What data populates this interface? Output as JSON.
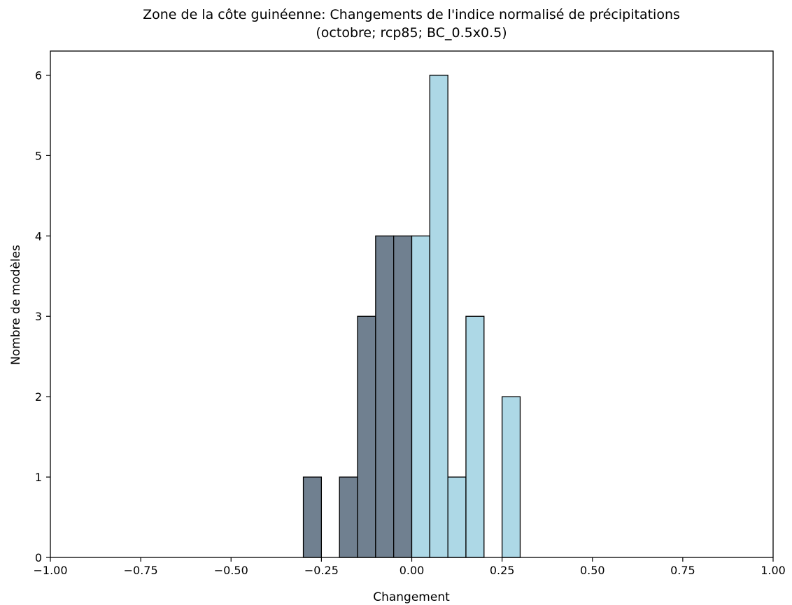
{
  "chart_data": {
    "type": "bar",
    "title": "Zone de la côte guinéenne: Changements de l'indice normalisé de précipitations",
    "subtitle": "(octobre; rcp85; BC_0.5x0.5)",
    "xlabel": "Changement",
    "ylabel": "Nombre de modèles",
    "xlim": [
      -1.0,
      1.0
    ],
    "ylim": [
      0,
      6.3
    ],
    "grid": false,
    "x_ticks": [
      {
        "value": -1.0,
        "label": "−1.00"
      },
      {
        "value": -0.75,
        "label": "−0.75"
      },
      {
        "value": -0.5,
        "label": "−0.50"
      },
      {
        "value": -0.25,
        "label": "−0.25"
      },
      {
        "value": 0.0,
        "label": "0.00"
      },
      {
        "value": 0.25,
        "label": "0.25"
      },
      {
        "value": 0.5,
        "label": "0.50"
      },
      {
        "value": 0.75,
        "label": "0.75"
      },
      {
        "value": 1.0,
        "label": "1.00"
      }
    ],
    "y_ticks": [
      {
        "value": 0,
        "label": "0"
      },
      {
        "value": 1,
        "label": "1"
      },
      {
        "value": 2,
        "label": "2"
      },
      {
        "value": 3,
        "label": "3"
      },
      {
        "value": 4,
        "label": "4"
      },
      {
        "value": 5,
        "label": "5"
      },
      {
        "value": 6,
        "label": "6"
      }
    ],
    "bin_width": 0.05,
    "bins": [
      {
        "x0": -0.3,
        "x1": -0.25,
        "count": 1
      },
      {
        "x0": -0.2,
        "x1": -0.15,
        "count": 1
      },
      {
        "x0": -0.15,
        "x1": -0.1,
        "count": 3
      },
      {
        "x0": -0.1,
        "x1": -0.05,
        "count": 4
      },
      {
        "x0": -0.05,
        "x1": 0.0,
        "count": 4
      },
      {
        "x0": 0.0,
        "x1": 0.05,
        "count": 4
      },
      {
        "x0": 0.05,
        "x1": 0.1,
        "count": 6
      },
      {
        "x0": 0.1,
        "x1": 0.15,
        "count": 1
      },
      {
        "x0": 0.15,
        "x1": 0.2,
        "count": 3
      },
      {
        "x0": 0.25,
        "x1": 0.3,
        "count": 2
      }
    ],
    "colors": {
      "negative": "#708090",
      "positive": "#add8e6",
      "edge": "#000000"
    }
  }
}
